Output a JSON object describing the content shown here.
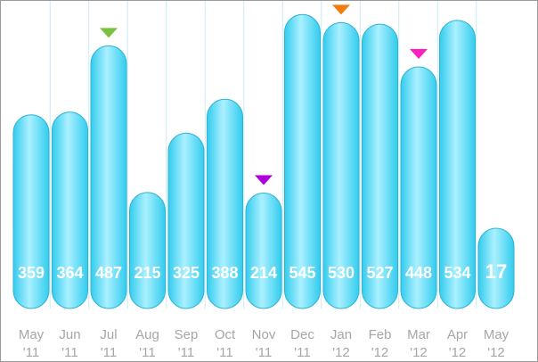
{
  "chart_data": {
    "type": "bar",
    "title": "",
    "xlabel": "",
    "ylabel": "",
    "ylim": [
      0,
      560
    ],
    "categories": [
      "May '11",
      "Jun '11",
      "Jul '11",
      "Aug '11",
      "Sep '11",
      "Oct '11",
      "Nov '11",
      "Dec '11",
      "Jan '12",
      "Feb '12",
      "Mar '12",
      "Apr '12",
      "May '12"
    ],
    "category_lines": [
      [
        "May",
        "'11"
      ],
      [
        "Jun",
        "'11"
      ],
      [
        "Jul",
        "'11"
      ],
      [
        "Aug",
        "'11"
      ],
      [
        "Sep",
        "'11"
      ],
      [
        "Oct",
        "'11"
      ],
      [
        "Nov",
        "'11"
      ],
      [
        "Dec",
        "'11"
      ],
      [
        "Jan",
        "'12"
      ],
      [
        "Feb",
        "'12"
      ],
      [
        "Mar",
        "'12"
      ],
      [
        "Apr",
        "'12"
      ],
      [
        "May",
        "'12"
      ]
    ],
    "values": [
      359,
      364,
      487,
      215,
      325,
      388,
      214,
      545,
      530,
      527,
      448,
      534,
      17
    ],
    "data_labels": [
      "359",
      "364",
      "487",
      "215",
      "325",
      "388",
      "214",
      "545",
      "530",
      "527",
      "448",
      "534",
      "17"
    ],
    "markers": [
      {
        "index": 2,
        "color": "#7bc142"
      },
      {
        "index": 6,
        "color": "#b000e0"
      },
      {
        "index": 8,
        "color": "#f07d0f"
      },
      {
        "index": 10,
        "color": "#ff1fbf"
      }
    ],
    "grid": "vertical",
    "legend": "none",
    "colors": {
      "bar_edge": "#33ccee",
      "bar_center": "#aaf0ff",
      "bar_stroke": "#2fb2d2",
      "grid_line": "#c8ecf4",
      "label_text": "#ffffff",
      "category_text": "#a6a6a6"
    }
  }
}
